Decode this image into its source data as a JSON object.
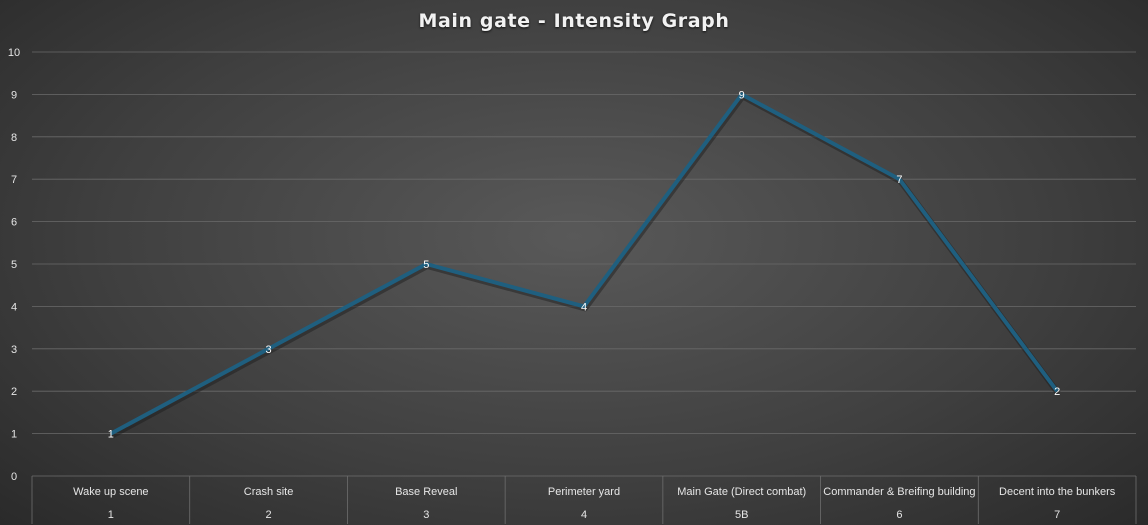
{
  "chart_data": {
    "type": "line",
    "title": "Main gate - Intensity Graph",
    "categories": [
      "Wake up scene",
      "Crash site",
      "Base Reveal",
      "Perimeter yard",
      "Main Gate (Direct combat)",
      "Commander & Breifing building",
      "Decent into the bunkers"
    ],
    "category_numbers": [
      "1",
      "2",
      "3",
      "4",
      "5B",
      "6",
      "7"
    ],
    "series": [
      {
        "values": [
          1,
          3,
          5,
          4,
          9,
          7,
          2
        ],
        "color": "#1f5f7f"
      }
    ],
    "yticks": [
      "0",
      "1",
      "2",
      "3",
      "4",
      "5",
      "6",
      "7",
      "8",
      "9",
      "10"
    ],
    "ylim": [
      0,
      10
    ],
    "grid": true,
    "data_labels": true,
    "legend": "none"
  }
}
